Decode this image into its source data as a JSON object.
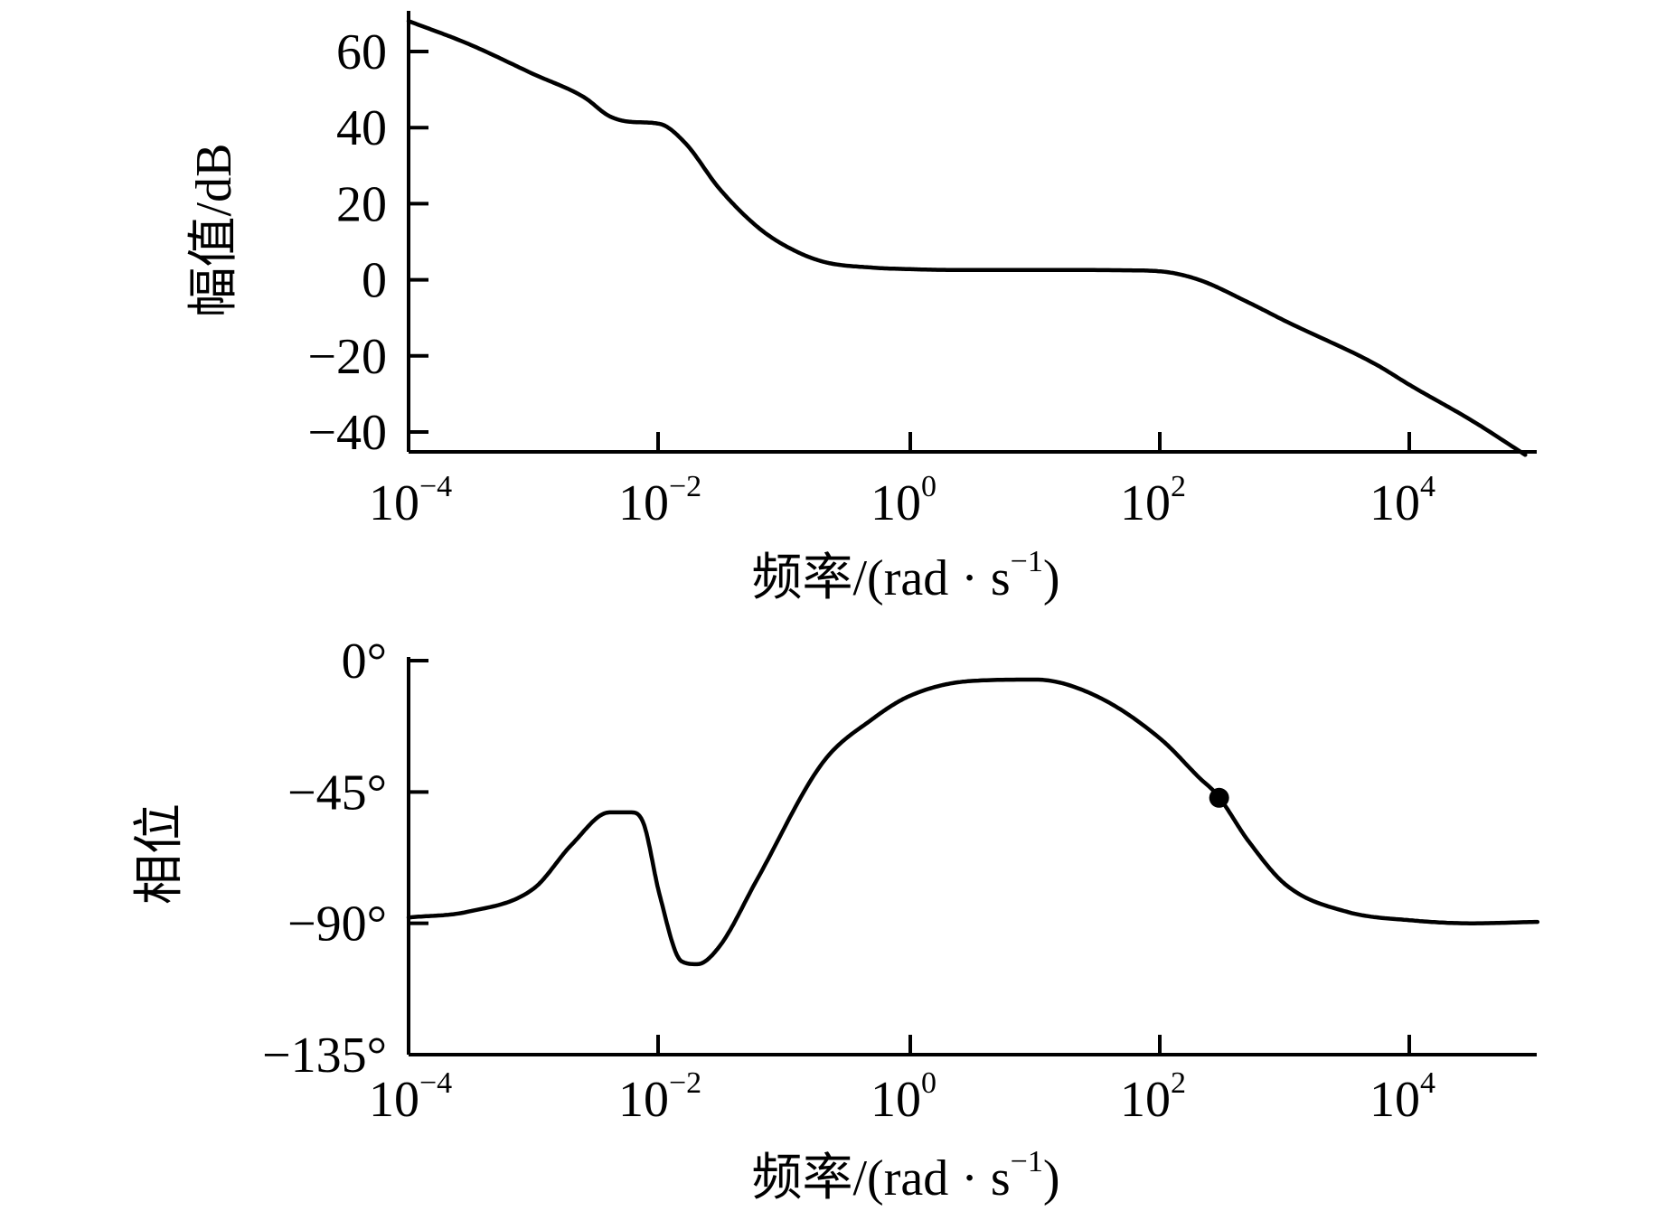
{
  "chart_data": [
    {
      "type": "line",
      "xscale": "log",
      "xlim": [
        0.0001,
        100000
      ],
      "ylim": [
        -45,
        70
      ],
      "grid": false,
      "ylabel": "幅值/dB",
      "xlabel": "频率/(rad · s-1)",
      "xlabel_parts": {
        "main": "频率/(rad · s",
        "sup": "−1",
        "close": ")"
      },
      "x_ticks": [
        {
          "base": "10",
          "exp": "−4"
        },
        {
          "base": "10",
          "exp": "−2"
        },
        {
          "base": "10",
          "exp": "0"
        },
        {
          "base": "10",
          "exp": "2"
        },
        {
          "base": "10",
          "exp": "4"
        }
      ],
      "y_ticks": [
        "60",
        "40",
        "20",
        "0",
        "−20",
        "−40"
      ],
      "y_tick_values": [
        60,
        40,
        20,
        0,
        -20,
        -40
      ],
      "x": [
        0.0001,
        0.0003,
        0.001,
        0.0025,
        0.004,
        0.006,
        0.01,
        0.016,
        0.03,
        0.06,
        0.1,
        0.2,
        0.5,
        1,
        2,
        10,
        50,
        100,
        200,
        500,
        1000,
        5000,
        10000,
        30000,
        80000
      ],
      "values": [
        68,
        62,
        54,
        48,
        43,
        41.5,
        41,
        36,
        24,
        14,
        9,
        4.8,
        3.2,
        2.8,
        2.6,
        2.6,
        2.5,
        2.2,
        0,
        -6,
        -11,
        -22,
        -28,
        -37,
        -46
      ]
    },
    {
      "type": "line",
      "xscale": "log",
      "xlim": [
        0.0001,
        100000
      ],
      "ylim": [
        -135,
        0
      ],
      "grid": false,
      "ylabel": "相位",
      "xlabel": "频率/(rad · s-1)",
      "xlabel_parts": {
        "main": "频率/(rad · s",
        "sup": "−1",
        "close": ")"
      },
      "x_ticks": [
        {
          "base": "10",
          "exp": "−4"
        },
        {
          "base": "10",
          "exp": "−2"
        },
        {
          "base": "10",
          "exp": "0"
        },
        {
          "base": "10",
          "exp": "2"
        },
        {
          "base": "10",
          "exp": "4"
        }
      ],
      "y_ticks": [
        "0°",
        "−45°",
        "−90°",
        "−135°"
      ],
      "y_tick_values": [
        0,
        -45,
        -90,
        -135
      ],
      "x": [
        0.0001,
        0.0003,
        0.001,
        0.002,
        0.004,
        0.006,
        0.0075,
        0.01,
        0.015,
        0.02,
        0.03,
        0.06,
        0.2,
        0.5,
        1,
        3,
        10,
        30,
        100,
        200,
        280,
        500,
        1000,
        3000,
        10000,
        30000,
        100000
      ],
      "values": [
        -88,
        -86,
        -78,
        -63,
        -52,
        -52,
        -56,
        -80,
        -103,
        -104,
        -98,
        -75,
        -35,
        -20,
        -12,
        -7,
        -6.5,
        -12,
        -27,
        -40,
        -46,
        -62,
        -77,
        -86,
        -89,
        -90,
        -89.5
      ],
      "marker": {
        "x": 290,
        "y": -47
      }
    }
  ]
}
